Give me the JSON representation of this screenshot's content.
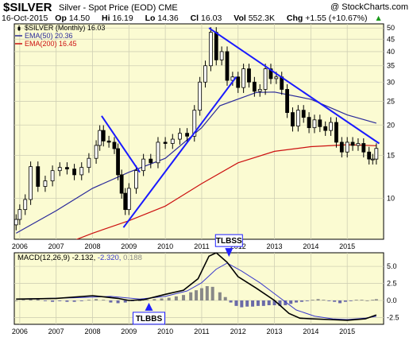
{
  "header": {
    "ticker": "$SILVER",
    "description": "Silver - Spot Price (EOD)",
    "exchange": "CME",
    "brand": "@ StockCharts.com",
    "date": "16-Oct-2015",
    "open_label": "Op",
    "open": "14.50",
    "high_label": "Hi",
    "high": "16.19",
    "low_label": "Lo",
    "low": "14.36",
    "close_label": "Cl",
    "close": "16.03",
    "volume_label": "Vol",
    "volume": "552.3K",
    "change_label": "Chg",
    "change": "+1.55 (+10.67%)",
    "change_arrow": "▲"
  },
  "colors": {
    "panel_bg": "#fbfbd2",
    "grid": "#d0d0b4",
    "price": "#000000",
    "ema50": "#2a2a9a",
    "ema200": "#cc1010",
    "trendline": "#1a1aff",
    "macd": "#000000",
    "signal": "#3a3acc",
    "histogram": "#6a6aa8",
    "histogram_up": "#888888",
    "callout_border": "#2020ff"
  },
  "chart_data": [
    {
      "type": "candlestick",
      "title": "",
      "legend": [
        {
          "name": "$SILVER (Monthly) 16.03",
          "icon": "candle-icon"
        },
        {
          "name": "EMA(50) 20.36",
          "color": "#2a2a9a"
        },
        {
          "name": "EMA(200) 16.45",
          "color": "#cc1010"
        }
      ],
      "y_scale": "log",
      "ylim": [
        6.8,
        52
      ],
      "y_ticks": [
        10,
        15,
        20,
        25,
        30,
        35,
        40,
        45,
        50
      ],
      "xlim": [
        2005.85,
        2016.0
      ],
      "x_ticks": [
        "2006",
        "2007",
        "2008",
        "2009",
        "2010",
        "2011",
        "2012",
        "2013",
        "2014",
        "2015"
      ],
      "price_series": [
        {
          "x": 2005.9,
          "y": 8.2
        },
        {
          "x": 2006.0,
          "y": 9.0
        },
        {
          "x": 2006.15,
          "y": 9.9
        },
        {
          "x": 2006.3,
          "y": 13.5
        },
        {
          "x": 2006.5,
          "y": 11.2
        },
        {
          "x": 2006.7,
          "y": 11.8
        },
        {
          "x": 2006.9,
          "y": 13.0
        },
        {
          "x": 2007.1,
          "y": 13.4
        },
        {
          "x": 2007.3,
          "y": 13.2
        },
        {
          "x": 2007.5,
          "y": 12.5
        },
        {
          "x": 2007.7,
          "y": 13.4
        },
        {
          "x": 2007.9,
          "y": 14.6
        },
        {
          "x": 2008.1,
          "y": 16.5
        },
        {
          "x": 2008.2,
          "y": 19.0
        },
        {
          "x": 2008.3,
          "y": 17.2
        },
        {
          "x": 2008.45,
          "y": 17.0
        },
        {
          "x": 2008.6,
          "y": 16.0
        },
        {
          "x": 2008.7,
          "y": 12.5
        },
        {
          "x": 2008.8,
          "y": 10.5
        },
        {
          "x": 2008.9,
          "y": 9.0
        },
        {
          "x": 2009.0,
          "y": 11.0
        },
        {
          "x": 2009.2,
          "y": 13.0
        },
        {
          "x": 2009.4,
          "y": 14.5
        },
        {
          "x": 2009.6,
          "y": 14.0
        },
        {
          "x": 2009.8,
          "y": 17.0
        },
        {
          "x": 2010.0,
          "y": 16.8
        },
        {
          "x": 2010.2,
          "y": 17.5
        },
        {
          "x": 2010.4,
          "y": 18.5
        },
        {
          "x": 2010.6,
          "y": 18.0
        },
        {
          "x": 2010.8,
          "y": 23.0
        },
        {
          "x": 2010.95,
          "y": 30.0
        },
        {
          "x": 2011.1,
          "y": 35.0
        },
        {
          "x": 2011.25,
          "y": 48.0
        },
        {
          "x": 2011.4,
          "y": 37.0
        },
        {
          "x": 2011.55,
          "y": 40.0
        },
        {
          "x": 2011.7,
          "y": 30.5
        },
        {
          "x": 2011.85,
          "y": 31.5
        },
        {
          "x": 2012.0,
          "y": 28.5
        },
        {
          "x": 2012.15,
          "y": 34.0
        },
        {
          "x": 2012.3,
          "y": 30.0
        },
        {
          "x": 2012.45,
          "y": 27.5
        },
        {
          "x": 2012.6,
          "y": 28.0
        },
        {
          "x": 2012.75,
          "y": 34.0
        },
        {
          "x": 2012.9,
          "y": 31.0
        },
        {
          "x": 2013.05,
          "y": 31.5
        },
        {
          "x": 2013.2,
          "y": 28.0
        },
        {
          "x": 2013.35,
          "y": 22.5
        },
        {
          "x": 2013.5,
          "y": 19.8
        },
        {
          "x": 2013.65,
          "y": 23.0
        },
        {
          "x": 2013.8,
          "y": 21.5
        },
        {
          "x": 2013.95,
          "y": 19.5
        },
        {
          "x": 2014.1,
          "y": 21.0
        },
        {
          "x": 2014.25,
          "y": 19.7
        },
        {
          "x": 2014.4,
          "y": 19.0
        },
        {
          "x": 2014.55,
          "y": 20.5
        },
        {
          "x": 2014.7,
          "y": 17.0
        },
        {
          "x": 2014.85,
          "y": 15.5
        },
        {
          "x": 2015.0,
          "y": 17.0
        },
        {
          "x": 2015.15,
          "y": 16.5
        },
        {
          "x": 2015.3,
          "y": 16.8
        },
        {
          "x": 2015.45,
          "y": 15.5
        },
        {
          "x": 2015.6,
          "y": 14.5
        },
        {
          "x": 2015.7,
          "y": 14.5
        },
        {
          "x": 2015.8,
          "y": 16.03
        }
      ],
      "ema50": [
        {
          "x": 2005.9,
          "y": 7.2
        },
        {
          "x": 2007.0,
          "y": 8.9
        },
        {
          "x": 2008.0,
          "y": 11.0
        },
        {
          "x": 2009.0,
          "y": 12.8
        },
        {
          "x": 2010.0,
          "y": 14.6
        },
        {
          "x": 2011.0,
          "y": 19.5
        },
        {
          "x": 2011.5,
          "y": 24.0
        },
        {
          "x": 2012.5,
          "y": 27.2
        },
        {
          "x": 2013.0,
          "y": 27.3
        },
        {
          "x": 2014.0,
          "y": 25.5
        },
        {
          "x": 2015.0,
          "y": 22.0
        },
        {
          "x": 2015.8,
          "y": 20.36
        }
      ],
      "ema200": [
        {
          "x": 2006.4,
          "y": 5.8
        },
        {
          "x": 2007.0,
          "y": 6.3
        },
        {
          "x": 2008.0,
          "y": 7.2
        },
        {
          "x": 2009.0,
          "y": 8.1
        },
        {
          "x": 2010.0,
          "y": 9.3
        },
        {
          "x": 2011.0,
          "y": 11.5
        },
        {
          "x": 2012.0,
          "y": 14.0
        },
        {
          "x": 2013.0,
          "y": 15.6
        },
        {
          "x": 2014.0,
          "y": 16.3
        },
        {
          "x": 2015.0,
          "y": 16.6
        },
        {
          "x": 2015.8,
          "y": 16.45
        }
      ],
      "trendlines": [
        {
          "from": {
            "x": 2008.25,
            "y": 21.8
          },
          "to": {
            "x": 2009.3,
            "y": 12.8
          }
        },
        {
          "from": {
            "x": 2008.85,
            "y": 7.6
          },
          "to": {
            "x": 2011.95,
            "y": 31.5
          }
        },
        {
          "from": {
            "x": 2011.2,
            "y": 50.0
          },
          "to": {
            "x": 2015.88,
            "y": 16.8
          }
        }
      ]
    },
    {
      "type": "line",
      "title": "",
      "legend": [
        {
          "name": "MACD(12,26,9)",
          "value": "-2.132",
          "color": "#000000"
        },
        {
          "name": "",
          "value": "-2.320",
          "color": "#3a3acc"
        },
        {
          "name": "",
          "value": "0.188",
          "color": "#888888"
        }
      ],
      "ylim": [
        -3.5,
        7.0
      ],
      "y_ticks": [
        "-2.5",
        "0.0",
        "2.5",
        "5.0"
      ],
      "y_tick_values": [
        -2.5,
        0.0,
        2.5,
        5.0
      ],
      "xlim": [
        2005.85,
        2016.0
      ],
      "x_ticks": [
        "2006",
        "2007",
        "2008",
        "2009",
        "2010",
        "2011",
        "2012",
        "2013",
        "2014",
        "2015"
      ],
      "macd": [
        {
          "x": 2005.9,
          "y": 0.2
        },
        {
          "x": 2007.0,
          "y": 0.3
        },
        {
          "x": 2008.0,
          "y": 0.7
        },
        {
          "x": 2008.7,
          "y": 0.3
        },
        {
          "x": 2009.0,
          "y": 0.0
        },
        {
          "x": 2009.4,
          "y": 0.1
        },
        {
          "x": 2010.0,
          "y": 0.9
        },
        {
          "x": 2010.5,
          "y": 1.5
        },
        {
          "x": 2010.9,
          "y": 3.2
        },
        {
          "x": 2011.2,
          "y": 6.5
        },
        {
          "x": 2011.4,
          "y": 7.0
        },
        {
          "x": 2011.7,
          "y": 5.6
        },
        {
          "x": 2012.0,
          "y": 3.5
        },
        {
          "x": 2012.5,
          "y": 1.8
        },
        {
          "x": 2013.0,
          "y": 0.0
        },
        {
          "x": 2013.4,
          "y": -1.9
        },
        {
          "x": 2013.7,
          "y": -2.6
        },
        {
          "x": 2014.0,
          "y": -2.7
        },
        {
          "x": 2014.5,
          "y": -2.8
        },
        {
          "x": 2015.0,
          "y": -2.9
        },
        {
          "x": 2015.5,
          "y": -2.7
        },
        {
          "x": 2015.8,
          "y": -2.132
        }
      ],
      "signal": [
        {
          "x": 2005.9,
          "y": 0.2
        },
        {
          "x": 2007.5,
          "y": 0.4
        },
        {
          "x": 2008.5,
          "y": 0.6
        },
        {
          "x": 2009.3,
          "y": 0.2
        },
        {
          "x": 2010.0,
          "y": 0.6
        },
        {
          "x": 2010.6,
          "y": 1.4
        },
        {
          "x": 2011.0,
          "y": 2.6
        },
        {
          "x": 2011.4,
          "y": 4.6
        },
        {
          "x": 2011.7,
          "y": 5.5
        },
        {
          "x": 2012.1,
          "y": 4.3
        },
        {
          "x": 2012.6,
          "y": 2.6
        },
        {
          "x": 2013.1,
          "y": 0.6
        },
        {
          "x": 2013.6,
          "y": -1.4
        },
        {
          "x": 2014.1,
          "y": -2.3
        },
        {
          "x": 2014.6,
          "y": -2.7
        },
        {
          "x": 2015.0,
          "y": -2.8
        },
        {
          "x": 2015.5,
          "y": -2.6
        },
        {
          "x": 2015.8,
          "y": -2.32
        }
      ],
      "histogram": [
        {
          "x": 2005.9,
          "y": 0.0
        },
        {
          "x": 2006.1,
          "y": 0.1
        },
        {
          "x": 2006.3,
          "y": 0.3
        },
        {
          "x": 2006.5,
          "y": 0.2
        },
        {
          "x": 2006.7,
          "y": -0.1
        },
        {
          "x": 2006.9,
          "y": -0.2
        },
        {
          "x": 2007.1,
          "y": -0.1
        },
        {
          "x": 2007.3,
          "y": -0.2
        },
        {
          "x": 2007.5,
          "y": -0.2
        },
        {
          "x": 2007.7,
          "y": -0.1
        },
        {
          "x": 2007.9,
          "y": 0.1
        },
        {
          "x": 2008.1,
          "y": 0.2
        },
        {
          "x": 2008.3,
          "y": 0.1
        },
        {
          "x": 2008.5,
          "y": -0.3
        },
        {
          "x": 2008.7,
          "y": -0.4
        },
        {
          "x": 2008.9,
          "y": -0.3
        },
        {
          "x": 2009.1,
          "y": -0.1
        },
        {
          "x": 2009.3,
          "y": 0.0
        },
        {
          "x": 2009.5,
          "y": 0.1
        },
        {
          "x": 2009.7,
          "y": 0.2
        },
        {
          "x": 2009.9,
          "y": 0.3
        },
        {
          "x": 2010.1,
          "y": 0.4
        },
        {
          "x": 2010.3,
          "y": 0.6
        },
        {
          "x": 2010.5,
          "y": 0.8
        },
        {
          "x": 2010.7,
          "y": 1.2
        },
        {
          "x": 2010.85,
          "y": 1.5
        },
        {
          "x": 2011.0,
          "y": 1.8
        },
        {
          "x": 2011.15,
          "y": 2.1
        },
        {
          "x": 2011.3,
          "y": 2.0
        },
        {
          "x": 2011.5,
          "y": 1.2
        },
        {
          "x": 2011.65,
          "y": 0.5
        },
        {
          "x": 2011.8,
          "y": -0.3
        },
        {
          "x": 2011.95,
          "y": -0.8
        },
        {
          "x": 2012.1,
          "y": -1.0
        },
        {
          "x": 2012.25,
          "y": -0.9
        },
        {
          "x": 2012.4,
          "y": -0.9
        },
        {
          "x": 2012.55,
          "y": -0.8
        },
        {
          "x": 2012.7,
          "y": -0.8
        },
        {
          "x": 2012.85,
          "y": -0.7
        },
        {
          "x": 2013.0,
          "y": -0.7
        },
        {
          "x": 2013.15,
          "y": -0.8
        },
        {
          "x": 2013.3,
          "y": -0.7
        },
        {
          "x": 2013.45,
          "y": -0.5
        },
        {
          "x": 2013.6,
          "y": -0.3
        },
        {
          "x": 2013.75,
          "y": -0.2
        },
        {
          "x": 2013.9,
          "y": -0.1
        },
        {
          "x": 2014.05,
          "y": 0.1
        },
        {
          "x": 2014.2,
          "y": 0.2
        },
        {
          "x": 2014.35,
          "y": 0.1
        },
        {
          "x": 2014.5,
          "y": -0.1
        },
        {
          "x": 2014.65,
          "y": -0.2
        },
        {
          "x": 2014.8,
          "y": -0.4
        },
        {
          "x": 2014.95,
          "y": -0.2
        },
        {
          "x": 2015.1,
          "y": -0.1
        },
        {
          "x": 2015.25,
          "y": 0.1
        },
        {
          "x": 2015.4,
          "y": 0.1
        },
        {
          "x": 2015.55,
          "y": 0.0
        },
        {
          "x": 2015.7,
          "y": 0.1
        },
        {
          "x": 2015.8,
          "y": 0.188
        }
      ],
      "annotations": [
        {
          "text": "TLBSS",
          "arrow": "down",
          "x": 2011.75,
          "y": 6.4
        },
        {
          "text": "TLBBS",
          "arrow": "up",
          "x": 2009.55,
          "y": -0.1
        }
      ]
    }
  ]
}
